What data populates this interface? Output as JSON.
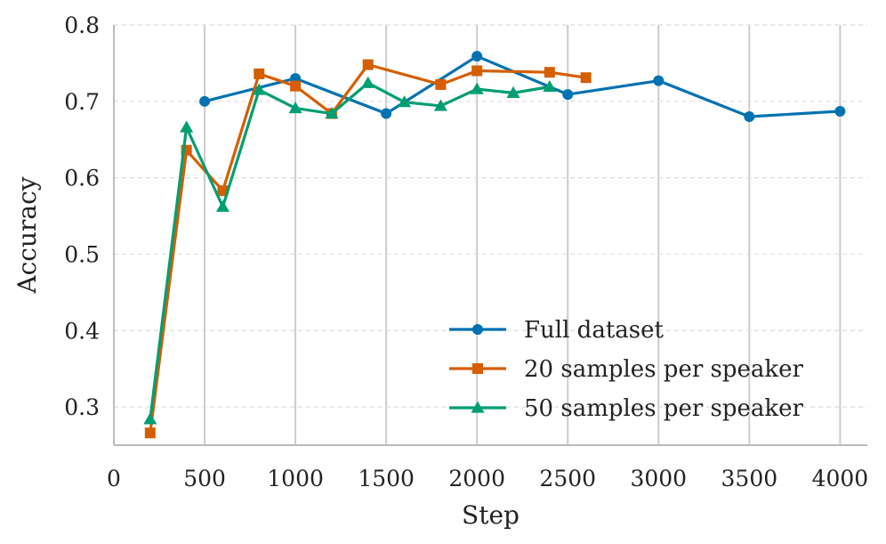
{
  "chart_data": {
    "type": "line",
    "title": "",
    "xlabel": "Step",
    "ylabel": "Accuracy",
    "xlim": [
      0,
      4150
    ],
    "ylim": [
      0.25,
      0.8
    ],
    "x_ticks": [
      0,
      500,
      1000,
      1500,
      2000,
      2500,
      3000,
      3500,
      4000
    ],
    "y_ticks": [
      0.3,
      0.4,
      0.5,
      0.6,
      0.7,
      0.8
    ],
    "x_tick_labels": [
      "0",
      "500",
      "1000",
      "1500",
      "2000",
      "2500",
      "3000",
      "3500",
      "4000"
    ],
    "y_tick_labels": [
      "0.3",
      "0.4",
      "0.5",
      "0.6",
      "0.7",
      "0.8"
    ],
    "grid": "vertical solid at x ticks, horizontal dashed at y ticks",
    "legend_position": "lower-right",
    "series": [
      {
        "name": "Full dataset",
        "color": "#0072b2",
        "marker": "circle",
        "x": [
          500,
          1000,
          1500,
          2000,
          2500,
          3000,
          3500,
          4000
        ],
        "y": [
          0.7,
          0.73,
          0.684,
          0.759,
          0.709,
          0.727,
          0.68,
          0.687
        ]
      },
      {
        "name": "20 samples per speaker",
        "color": "#d55e00",
        "marker": "square",
        "x": [
          200,
          400,
          600,
          800,
          1000,
          1200,
          1400,
          1800,
          2000,
          2400,
          2600
        ],
        "y": [
          0.266,
          0.636,
          0.583,
          0.736,
          0.72,
          0.684,
          0.748,
          0.722,
          0.74,
          0.738,
          0.731
        ]
      },
      {
        "name": "50 samples per speaker",
        "color": "#009e73",
        "marker": "triangle",
        "x": [
          200,
          400,
          600,
          800,
          1000,
          1200,
          1400,
          1600,
          1800,
          2000,
          2200,
          2400
        ],
        "y": [
          0.284,
          0.666,
          0.562,
          0.715,
          0.691,
          0.684,
          0.724,
          0.699,
          0.694,
          0.716,
          0.711,
          0.719
        ]
      }
    ]
  }
}
